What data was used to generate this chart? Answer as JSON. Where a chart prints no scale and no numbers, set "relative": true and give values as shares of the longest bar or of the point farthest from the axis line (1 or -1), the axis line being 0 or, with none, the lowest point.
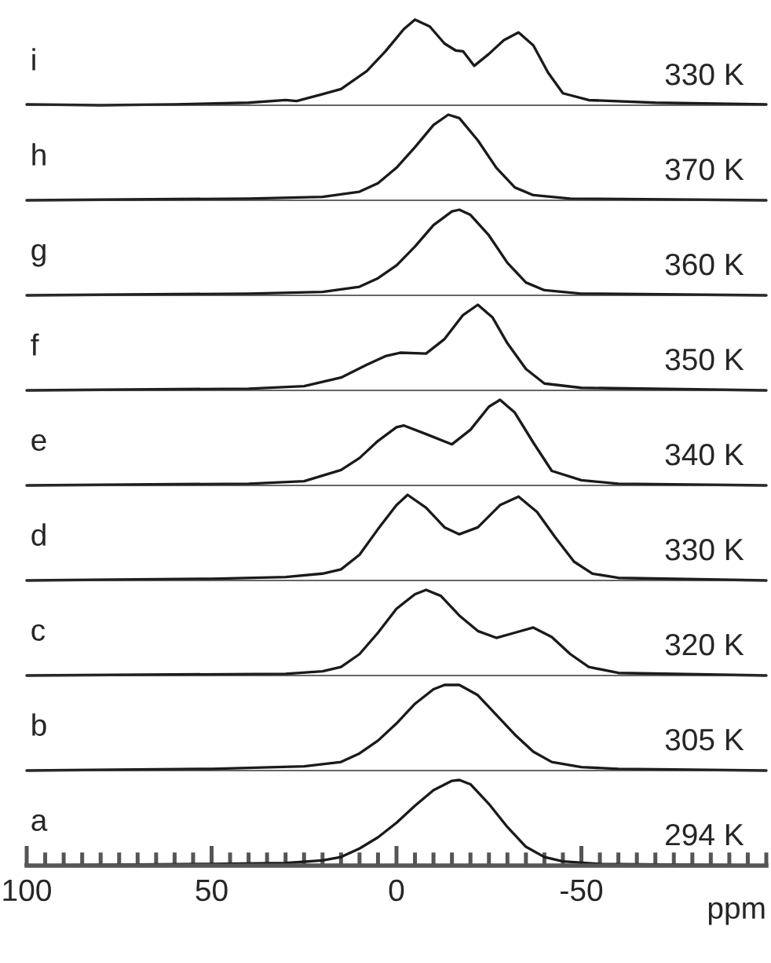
{
  "chart_data": [
    {
      "type": "line",
      "relative": true,
      "xlim": [
        100,
        -100
      ],
      "tick_labels": false,
      "annotations": [
        "i",
        "330 K"
      ],
      "x": [
        100,
        80,
        60,
        40,
        30,
        27,
        20,
        15,
        8,
        3,
        -2,
        -5,
        -9,
        -13,
        -16,
        -18,
        -21,
        -25,
        -29,
        -33,
        -37,
        -41,
        -45,
        -52,
        -70,
        -100
      ],
      "series": [
        {
          "color": "#1a1a1a",
          "values": [
            0.01,
            0,
            0.01,
            0.03,
            0.06,
            0.05,
            0.13,
            0.19,
            0.4,
            0.63,
            0.89,
            1,
            0.92,
            0.72,
            0.64,
            0.63,
            0.46,
            0.6,
            0.76,
            0.85,
            0.7,
            0.38,
            0.14,
            0.06,
            0.03,
            0.01
          ]
        }
      ]
    },
    {
      "type": "line",
      "relative": true,
      "xlim": [
        100,
        -100
      ],
      "tick_labels": false,
      "annotations": [
        "h",
        "370 K"
      ],
      "x": [
        100,
        40,
        20,
        10,
        5,
        0,
        -5,
        -10,
        -14,
        -17,
        -22,
        -27,
        -32,
        -37,
        -47,
        -100
      ],
      "series": [
        {
          "color": "#1a1a1a",
          "values": [
            0,
            0.02,
            0.04,
            0.1,
            0.2,
            0.38,
            0.62,
            0.88,
            1,
            0.96,
            0.7,
            0.38,
            0.15,
            0.06,
            0.02,
            0
          ]
        }
      ]
    },
    {
      "type": "line",
      "relative": true,
      "xlim": [
        100,
        -100
      ],
      "tick_labels": false,
      "annotations": [
        "g",
        "360 K"
      ],
      "x": [
        100,
        40,
        20,
        10,
        5,
        0,
        -5,
        -10,
        -15,
        -17,
        -20,
        -25,
        -30,
        -35,
        -40,
        -50,
        -100
      ],
      "series": [
        {
          "color": "#1a1a1a",
          "values": [
            0,
            0.02,
            0.04,
            0.1,
            0.2,
            0.35,
            0.57,
            0.82,
            0.98,
            1,
            0.94,
            0.7,
            0.38,
            0.15,
            0.06,
            0.02,
            0
          ]
        }
      ]
    },
    {
      "type": "line",
      "relative": true,
      "xlim": [
        100,
        -100
      ],
      "tick_labels": false,
      "annotations": [
        "f",
        "350 K"
      ],
      "x": [
        100,
        40,
        25,
        15,
        8,
        3,
        -1,
        -8,
        -13,
        -18,
        -22,
        -26,
        -30,
        -35,
        -40,
        -50,
        -100
      ],
      "series": [
        {
          "color": "#1a1a1a",
          "values": [
            0,
            0.02,
            0.05,
            0.15,
            0.3,
            0.4,
            0.44,
            0.43,
            0.6,
            0.88,
            1,
            0.85,
            0.55,
            0.25,
            0.08,
            0.03,
            0
          ]
        }
      ]
    },
    {
      "type": "line",
      "relative": true,
      "xlim": [
        100,
        -100
      ],
      "tick_labels": false,
      "annotations": [
        "e",
        "340 K"
      ],
      "x": [
        100,
        40,
        25,
        15,
        10,
        5,
        0,
        -2,
        -8,
        -15,
        -20,
        -25,
        -28,
        -32,
        -37,
        -42,
        -50,
        -60,
        -100
      ],
      "series": [
        {
          "color": "#1a1a1a",
          "values": [
            0,
            0.02,
            0.05,
            0.18,
            0.32,
            0.52,
            0.68,
            0.7,
            0.6,
            0.48,
            0.65,
            0.92,
            1,
            0.85,
            0.5,
            0.17,
            0.06,
            0.02,
            0
          ]
        }
      ]
    },
    {
      "type": "line",
      "relative": true,
      "xlim": [
        100,
        -100
      ],
      "tick_labels": false,
      "annotations": [
        "d",
        "330 K"
      ],
      "x": [
        100,
        50,
        30,
        20,
        15,
        10,
        5,
        0,
        -3,
        -8,
        -13,
        -17,
        -22,
        -28,
        -33,
        -38,
        -43,
        -48,
        -53,
        -60,
        -100
      ],
      "series": [
        {
          "color": "#1a1a1a",
          "values": [
            0,
            0.02,
            0.04,
            0.08,
            0.13,
            0.3,
            0.6,
            0.88,
            1,
            0.85,
            0.62,
            0.54,
            0.62,
            0.88,
            0.98,
            0.8,
            0.5,
            0.22,
            0.08,
            0.03,
            0
          ]
        }
      ]
    },
    {
      "type": "line",
      "relative": true,
      "xlim": [
        100,
        -100
      ],
      "tick_labels": false,
      "annotations": [
        "c",
        "320 K"
      ],
      "x": [
        100,
        30,
        20,
        15,
        10,
        5,
        0,
        -5,
        -8,
        -12,
        -17,
        -22,
        -27,
        -32,
        -37,
        -42,
        -47,
        -52,
        -60,
        -100
      ],
      "series": [
        {
          "color": "#1a1a1a",
          "values": [
            0,
            0.02,
            0.05,
            0.1,
            0.25,
            0.5,
            0.78,
            0.95,
            1,
            0.93,
            0.7,
            0.52,
            0.44,
            0.5,
            0.56,
            0.45,
            0.25,
            0.1,
            0.03,
            0
          ]
        }
      ]
    },
    {
      "type": "line",
      "relative": true,
      "xlim": [
        100,
        -100
      ],
      "tick_labels": false,
      "annotations": [
        "b",
        "305 K"
      ],
      "x": [
        100,
        50,
        25,
        15,
        10,
        5,
        0,
        -5,
        -10,
        -13,
        -17,
        -22,
        -27,
        -32,
        -37,
        -42,
        -50,
        -60,
        -100
      ],
      "series": [
        {
          "color": "#1a1a1a",
          "values": [
            0,
            0.02,
            0.05,
            0.1,
            0.2,
            0.35,
            0.55,
            0.78,
            0.95,
            1,
            1,
            0.88,
            0.65,
            0.42,
            0.22,
            0.1,
            0.04,
            0.02,
            0
          ]
        }
      ]
    },
    {
      "type": "line",
      "relative": true,
      "xlim": [
        100,
        -100
      ],
      "tick_labels": "x",
      "xlabel": "ppm",
      "annotations": [
        "a",
        "294 K"
      ],
      "xticks": [
        100,
        {
          "value": 95,
          "label": null
        },
        {
          "value": 90,
          "label": null
        },
        {
          "value": 85,
          "label": null
        },
        {
          "value": 80,
          "label": null
        },
        {
          "value": 75,
          "label": null
        },
        {
          "value": 70,
          "label": null
        },
        {
          "value": 65,
          "label": null
        },
        {
          "value": 60,
          "label": null
        },
        {
          "value": 55,
          "label": null
        },
        50,
        {
          "value": 45,
          "label": null
        },
        {
          "value": 40,
          "label": null
        },
        {
          "value": 35,
          "label": null
        },
        {
          "value": 30,
          "label": null
        },
        {
          "value": 25,
          "label": null
        },
        {
          "value": 20,
          "label": null
        },
        {
          "value": 15,
          "label": null
        },
        {
          "value": 10,
          "label": null
        },
        {
          "value": 5,
          "label": null
        },
        0,
        {
          "value": -5,
          "label": null
        },
        {
          "value": -10,
          "label": null
        },
        {
          "value": -15,
          "label": null
        },
        {
          "value": -20,
          "label": null
        },
        {
          "value": -25,
          "label": null
        },
        {
          "value": -30,
          "label": null
        },
        {
          "value": -35,
          "label": null
        },
        {
          "value": -40,
          "label": null
        },
        {
          "value": -45,
          "label": null
        },
        -50,
        {
          "value": -55,
          "label": null
        },
        {
          "value": -60,
          "label": null
        },
        {
          "value": -65,
          "label": null
        },
        {
          "value": -70,
          "label": null
        },
        {
          "value": -75,
          "label": null
        },
        {
          "value": -80,
          "label": null
        },
        {
          "value": -85,
          "label": null
        },
        {
          "value": -90,
          "label": null
        },
        {
          "value": -95,
          "label": null
        },
        {
          "value": -100,
          "label": null
        }
      ],
      "x": [
        100,
        50,
        30,
        20,
        15,
        10,
        5,
        0,
        -5,
        -10,
        -15,
        -17,
        -20,
        -25,
        -30,
        -35,
        -40,
        -45,
        -55,
        -100
      ],
      "series": [
        {
          "color": "#1a1a1a",
          "values": [
            0,
            0.02,
            0.03,
            0.06,
            0.1,
            0.2,
            0.33,
            0.5,
            0.7,
            0.88,
            0.99,
            1,
            0.95,
            0.72,
            0.45,
            0.22,
            0.1,
            0.05,
            0.02,
            0
          ]
        }
      ]
    }
  ]
}
